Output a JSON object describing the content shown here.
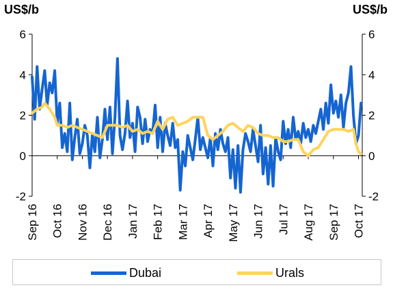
{
  "chart_data": {
    "type": "line",
    "left_axis_unit": "US$/b",
    "right_axis_unit": "US$/b",
    "ylim": [
      -2,
      6
    ],
    "yticks": [
      -2,
      0,
      2,
      4,
      6
    ],
    "x_tick_labels": [
      "Sep 16",
      "Oct 16",
      "Nov 16",
      "Dec 16",
      "Jan 17",
      "Feb 17",
      "Mar 17",
      "Apr 17",
      "May 17",
      "Jun 17",
      "Jul 17",
      "Aug 17",
      "Sep 17",
      "Oct 17"
    ],
    "grid": false,
    "legend_position": "bottom",
    "series": [
      {
        "name": "Dubai",
        "color": "#1565d1",
        "x": [
          0,
          0.1,
          0.2,
          0.3,
          0.4,
          0.5,
          0.6,
          0.7,
          0.8,
          0.9,
          1.0,
          1.1,
          1.2,
          1.3,
          1.4,
          1.5,
          1.6,
          1.7,
          1.8,
          1.9,
          2.0,
          2.1,
          2.2,
          2.3,
          2.4,
          2.5,
          2.6,
          2.7,
          2.8,
          2.9,
          3.0,
          3.1,
          3.2,
          3.3,
          3.4,
          3.5,
          3.6,
          3.7,
          3.8,
          3.9,
          4.0,
          4.1,
          4.2,
          4.3,
          4.4,
          4.5,
          4.6,
          4.7,
          4.8,
          4.9,
          5.0,
          5.1,
          5.2,
          5.3,
          5.4,
          5.5,
          5.6,
          5.7,
          5.8,
          5.9,
          6.0,
          6.1,
          6.2,
          6.3,
          6.4,
          6.5,
          6.6,
          6.7,
          6.8,
          6.9,
          7.0,
          7.1,
          7.2,
          7.3,
          7.4,
          7.5,
          7.6,
          7.7,
          7.8,
          7.9,
          8.0,
          8.1,
          8.2,
          8.3,
          8.4,
          8.5,
          8.6,
          8.7,
          8.8,
          8.9,
          9.0,
          9.1,
          9.2,
          9.3,
          9.4,
          9.5,
          9.6,
          9.7,
          9.8,
          9.9,
          10.0,
          10.1,
          10.2,
          10.3,
          10.4,
          10.5,
          10.6,
          10.7,
          10.8,
          10.9,
          11.0,
          11.1,
          11.2,
          11.3,
          11.4,
          11.5,
          11.6,
          11.7,
          11.8,
          11.9,
          12.0,
          12.1,
          12.2,
          12.3,
          12.4,
          12.5,
          12.6,
          12.7,
          12.8,
          12.9,
          13.0,
          13.1
        ],
        "values": [
          3.9,
          1.8,
          4.4,
          2.3,
          3.3,
          4.2,
          2.5,
          3.6,
          3.1,
          4.2,
          1.6,
          2.6,
          0.4,
          1.1,
          0.2,
          2.6,
          -0.2,
          0.9,
          1.8,
          0.1,
          0.6,
          1.5,
          1.0,
          -0.6,
          1.1,
          0.2,
          1.9,
          -0.1,
          0.8,
          2.3,
          0.8,
          2.4,
          0.1,
          1.9,
          4.8,
          1.0,
          0.3,
          1.1,
          2.7,
          0.9,
          1.6,
          0.2,
          2.4,
          1.9,
          0.6,
          1.8,
          0.7,
          1.3,
          1.1,
          2.5,
          0.4,
          1.9,
          0.2,
          1.6,
          1.0,
          0.5,
          1.6,
          0.4,
          0.8,
          -1.7,
          0.2,
          -0.5,
          1.0,
          0.4,
          -0.2,
          0.8,
          1.9,
          0.3,
          0.9,
          0.4,
          -0.1,
          0.9,
          -0.5,
          1.1,
          0.3,
          1.3,
          0.6,
          0.2,
          0.9,
          -1.1,
          0.3,
          -1.6,
          0.5,
          -1.8,
          0.3,
          1.1,
          0.7,
          0.2,
          1.3,
          0.5,
          -0.3,
          1.5,
          -0.9,
          0.4,
          -1.4,
          0.5,
          -1.5,
          0.9,
          0.2,
          -0.2,
          1.7,
          0.6,
          1.3,
          0.4,
          1.9,
          0.8,
          1.2,
          0.6,
          1.6,
          0.9,
          1.3,
          0.7,
          1.5,
          1.1,
          1.7,
          2.3,
          1.3,
          2.6,
          1.6,
          3.5,
          2.1,
          2.7,
          1.9,
          3.0,
          1.4,
          2.6,
          3.1,
          4.4,
          2.0,
          0.6,
          1.0,
          2.6
        ]
      },
      {
        "name": "Urals",
        "color": "#ffd35c",
        "x": [
          0,
          0.2,
          0.4,
          0.5,
          0.7,
          0.9,
          1.0,
          1.2,
          1.4,
          1.6,
          1.8,
          2.0,
          2.2,
          2.4,
          2.6,
          2.8,
          3.0,
          3.2,
          3.4,
          3.6,
          3.8,
          4.0,
          4.2,
          4.4,
          4.6,
          4.8,
          5.0,
          5.2,
          5.4,
          5.6,
          5.8,
          6.0,
          6.2,
          6.4,
          6.6,
          6.8,
          7.0,
          7.2,
          7.4,
          7.6,
          7.8,
          8.0,
          8.2,
          8.4,
          8.6,
          8.8,
          9.0,
          9.2,
          9.4,
          9.6,
          9.8,
          10.0,
          10.2,
          10.4,
          10.6,
          10.8,
          11.0,
          11.2,
          11.4,
          11.6,
          11.8,
          12.0,
          12.2,
          12.4,
          12.6,
          12.8,
          12.9,
          13.0,
          13.1
        ],
        "values": [
          2.1,
          2.3,
          2.4,
          2.6,
          2.3,
          1.9,
          1.5,
          1.5,
          1.4,
          1.5,
          1.4,
          1.3,
          1.2,
          1.1,
          1.0,
          0.9,
          1.5,
          1.5,
          1.5,
          1.4,
          1.5,
          1.2,
          1.3,
          1.1,
          1.2,
          1.1,
          1.7,
          1.3,
          1.8,
          1.9,
          1.5,
          1.6,
          1.7,
          1.9,
          1.9,
          1.9,
          1.0,
          0.8,
          1.0,
          1.2,
          1.5,
          1.6,
          1.4,
          1.2,
          1.5,
          1.4,
          1.1,
          1.0,
          1.0,
          0.9,
          0.9,
          0.7,
          0.7,
          0.8,
          0.8,
          0.2,
          0.0,
          0.3,
          0.4,
          0.8,
          1.2,
          1.3,
          1.3,
          1.3,
          1.2,
          1.3,
          0.6,
          0.2,
          0.1
        ]
      }
    ]
  }
}
